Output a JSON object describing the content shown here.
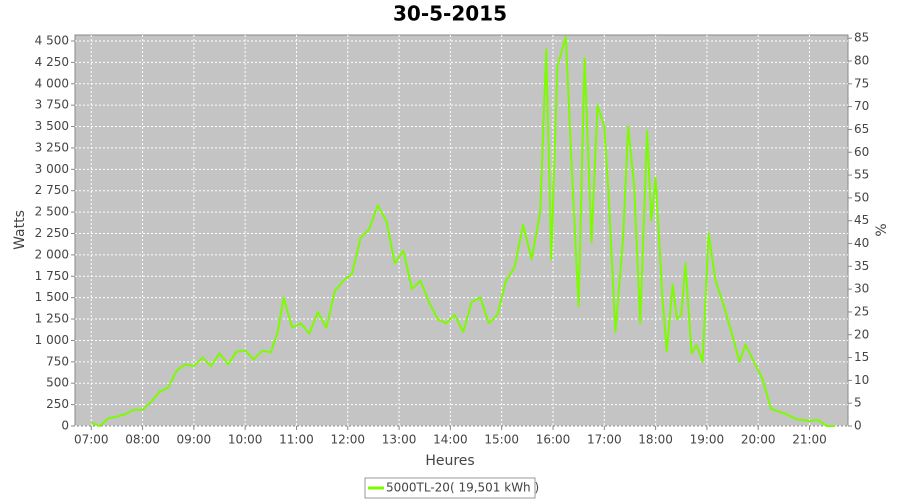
{
  "chart_data": {
    "type": "line",
    "title": "30-5-2015",
    "x_label": "Heures",
    "y_label": "Watts",
    "y2_label": "%",
    "x": [
      "07:00",
      "07:10",
      "07:20",
      "07:30",
      "07:40",
      "07:50",
      "08:00",
      "08:10",
      "08:20",
      "08:30",
      "08:40",
      "08:50",
      "09:00",
      "09:10",
      "09:20",
      "09:30",
      "09:40",
      "09:50",
      "10:00",
      "10:10",
      "10:20",
      "10:30",
      "10:38",
      "10:45",
      "10:55",
      "11:05",
      "11:15",
      "11:25",
      "11:35",
      "11:45",
      "11:55",
      "12:05",
      "12:15",
      "12:25",
      "12:35",
      "12:45",
      "12:55",
      "13:05",
      "13:15",
      "13:25",
      "13:35",
      "13:45",
      "13:55",
      "14:05",
      "14:15",
      "14:25",
      "14:35",
      "14:45",
      "14:55",
      "15:05",
      "15:15",
      "15:25",
      "15:35",
      "15:45",
      "15:52",
      "15:58",
      "16:05",
      "16:15",
      "16:22",
      "16:30",
      "16:37",
      "16:45",
      "16:52",
      "17:00",
      "17:05",
      "17:13",
      "17:22",
      "17:28",
      "17:35",
      "17:42",
      "17:50",
      "17:55",
      "18:00",
      "18:08",
      "18:13",
      "18:20",
      "18:25",
      "18:30",
      "18:35",
      "18:42",
      "18:48",
      "18:55",
      "19:02",
      "19:10",
      "19:20",
      "19:30",
      "19:38",
      "19:45",
      "19:55",
      "20:05",
      "20:15",
      "20:30",
      "20:45",
      "21:00",
      "21:10",
      "21:20",
      "21:30"
    ],
    "series": [
      {
        "name": "5000TL-20( 19,501 kWh )",
        "color": "#7cfc00",
        "values": [
          40,
          0,
          90,
          110,
          140,
          190,
          190,
          280,
          400,
          450,
          650,
          720,
          700,
          800,
          700,
          850,
          720,
          870,
          880,
          780,
          880,
          860,
          1100,
          1500,
          1150,
          1200,
          1080,
          1330,
          1150,
          1580,
          1700,
          1780,
          2200,
          2300,
          2580,
          2400,
          1900,
          2050,
          1600,
          1700,
          1450,
          1250,
          1200,
          1300,
          1100,
          1450,
          1500,
          1200,
          1300,
          1700,
          1850,
          2350,
          1950,
          2500,
          4400,
          1950,
          4200,
          4550,
          3000,
          1400,
          4300,
          2150,
          3750,
          3500,
          2700,
          1100,
          2200,
          3500,
          2800,
          1200,
          3450,
          2400,
          2900,
          1500,
          870,
          1650,
          1250,
          1300,
          1900,
          850,
          950,
          750,
          2250,
          1700,
          1400,
          1050,
          750,
          950,
          750,
          550,
          200,
          150,
          80,
          60,
          70,
          0,
          0
        ]
      }
    ],
    "xlim": [
      "06:41",
      "21:45"
    ],
    "xticks": [
      "07:00",
      "08:00",
      "09:00",
      "10:00",
      "11:00",
      "12:00",
      "13:00",
      "14:00",
      "15:00",
      "16:00",
      "17:00",
      "18:00",
      "19:00",
      "20:00",
      "21:00"
    ],
    "ylim": [
      0,
      4570
    ],
    "yticks": [
      0,
      250,
      500,
      750,
      {
        "value": 1000,
        "label": "1 000"
      },
      {
        "value": 1250,
        "label": "1 250"
      },
      {
        "value": 1500,
        "label": "1 500"
      },
      {
        "value": 1750,
        "label": "1 750"
      },
      {
        "value": 2000,
        "label": "2 000"
      },
      {
        "value": 2250,
        "label": "2 250"
      },
      {
        "value": 2500,
        "label": "2 500"
      },
      {
        "value": 2750,
        "label": "2 750"
      },
      {
        "value": 3000,
        "label": "3 000"
      },
      {
        "value": 3250,
        "label": "3 250"
      },
      {
        "value": 3500,
        "label": "3 500"
      },
      {
        "value": 3750,
        "label": "3 750"
      },
      {
        "value": 4000,
        "label": "4 000"
      },
      {
        "value": 4250,
        "label": "4 250"
      },
      {
        "value": 4500,
        "label": "4 500"
      }
    ],
    "y2lim": [
      0,
      85.7
    ],
    "y2ticks": [
      0,
      5,
      10,
      15,
      20,
      25,
      30,
      35,
      40,
      45,
      50,
      55,
      60,
      65,
      70,
      75,
      80,
      85
    ],
    "grid": true
  }
}
